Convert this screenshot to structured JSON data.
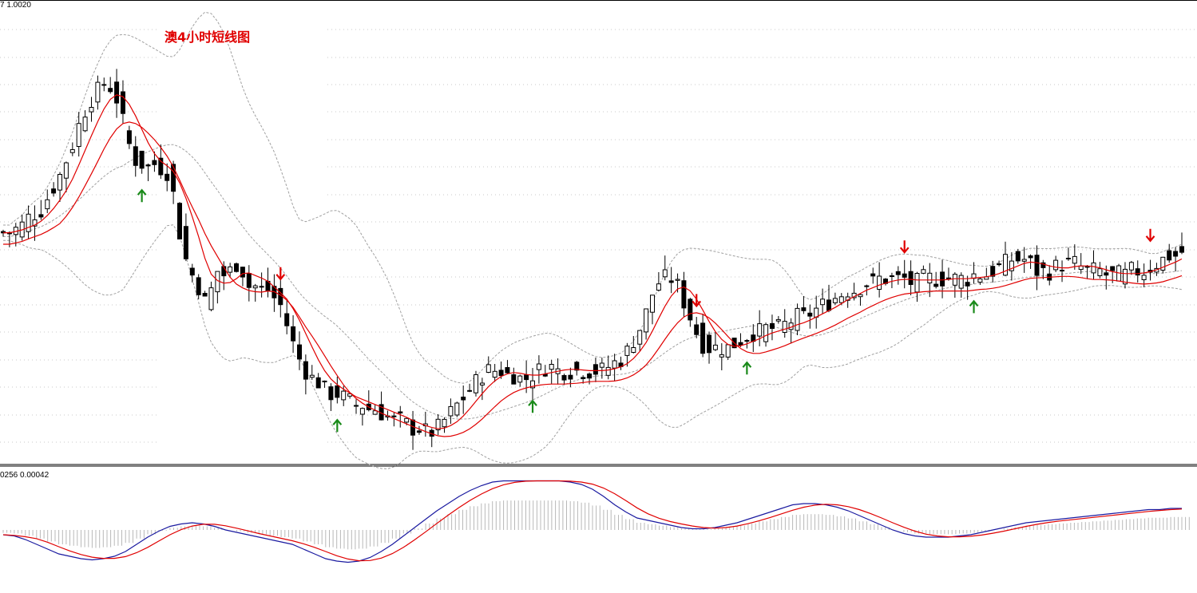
{
  "chart_title": "澳4小时短线图",
  "main_panel": {
    "info_text": "7 1.0020"
  },
  "sub_panel": {
    "info_text": "0256 0.00042"
  },
  "colors": {
    "background": "#ffffff",
    "candle_bull": "#ffffff",
    "candle_bear": "#000000",
    "ma": "#e00000",
    "band": "#a0a0a0",
    "arrow_down": "#e00000",
    "arrow_up": "#1a8a1a",
    "macd_line": "#1a1aa0",
    "signal_line": "#e00000",
    "histogram": "#b8b8b8"
  },
  "chart_data": {
    "type": "candlestick",
    "title": "澳4小时短线图",
    "indicators": [
      "moving-average",
      "bollinger-bands",
      "macd"
    ],
    "grid": true,
    "n_candles": 188,
    "close_series": [
      118,
      118,
      119,
      120,
      122,
      123,
      124,
      127,
      130,
      133,
      137,
      141,
      146,
      150,
      153,
      155,
      157,
      156,
      153,
      147,
      141,
      137,
      136,
      135,
      136,
      135,
      134,
      128,
      118,
      111,
      107,
      104,
      100,
      103,
      108,
      107,
      108,
      110,
      108,
      104,
      104,
      103,
      103,
      101,
      99,
      94,
      89,
      85,
      82,
      80,
      79,
      77,
      76,
      76,
      75,
      74,
      73,
      73,
      72,
      72,
      71,
      70,
      69,
      69,
      68,
      67,
      67,
      66,
      66,
      67,
      69,
      71,
      73,
      75,
      77,
      79,
      81,
      82,
      82,
      82,
      81,
      81,
      80,
      80,
      81,
      82,
      83,
      83,
      82,
      82,
      82,
      82,
      82,
      82,
      82,
      82,
      83,
      84,
      85,
      87,
      90,
      93,
      97,
      102,
      105,
      106,
      106,
      104,
      100,
      96,
      92,
      89,
      88,
      88,
      88,
      88,
      89,
      90,
      91,
      92,
      92,
      93,
      93,
      93,
      94,
      95,
      96,
      96,
      97,
      98,
      99,
      100,
      101,
      102,
      103,
      103,
      104,
      105,
      105,
      106,
      106,
      106,
      106,
      106,
      105,
      105,
      106,
      106,
      106,
      106,
      106,
      106,
      106,
      106,
      107,
      107,
      107,
      108,
      109,
      110,
      111,
      111,
      111,
      110,
      108,
      108,
      108,
      109,
      110,
      110,
      110,
      109,
      108,
      108,
      108,
      107,
      107,
      107,
      107,
      108,
      108,
      108,
      109,
      110,
      111,
      112,
      112,
      113
    ],
    "arrows": [
      {
        "index": 22,
        "direction": "up"
      },
      {
        "index": 44,
        "direction": "down"
      },
      {
        "index": 53,
        "direction": "up"
      },
      {
        "index": 84,
        "direction": "up"
      },
      {
        "index": 110,
        "direction": "down"
      },
      {
        "index": 118,
        "direction": "up"
      },
      {
        "index": 143,
        "direction": "down"
      },
      {
        "index": 154,
        "direction": "up"
      },
      {
        "index": 182,
        "direction": "down"
      }
    ],
    "macd_series": [
      -0.0004,
      -0.0005,
      -0.0008,
      -0.0012,
      -0.0016,
      -0.002,
      -0.0022,
      -0.0024,
      -0.0025,
      -0.0024,
      -0.0022,
      -0.0018,
      -0.0012,
      -0.0006,
      -0.0001,
      0.0003,
      0.0005,
      0.0006,
      0.0005,
      0.0003,
      0.0,
      -0.0002,
      -0.0004,
      -0.0006,
      -0.0008,
      -0.001,
      -0.0012,
      -0.0016,
      -0.002,
      -0.0024,
      -0.0026,
      -0.0027,
      -0.0026,
      -0.0023,
      -0.0018,
      -0.0012,
      -0.0005,
      0.0002,
      0.0009,
      0.0016,
      0.0022,
      0.0028,
      0.0033,
      0.0037,
      0.004,
      0.0041,
      0.0041,
      0.0041,
      0.0041,
      0.0041,
      0.0041,
      0.004,
      0.0038,
      0.0034,
      0.0028,
      0.0021,
      0.0015,
      0.001,
      0.0008,
      0.0006,
      0.0004,
      0.0002,
      0.0001,
      0.0001,
      0.0002,
      0.0004,
      0.0006,
      0.0009,
      0.0012,
      0.0015,
      0.0018,
      0.0021,
      0.0022,
      0.0022,
      0.0021,
      0.0019,
      0.0016,
      0.0012,
      0.0008,
      0.0004,
      0.0,
      -0.0003,
      -0.0005,
      -0.0006,
      -0.0006,
      -0.0006,
      -0.0005,
      -0.0004,
      -0.0002,
      0.0,
      0.0002,
      0.0004,
      0.0006,
      0.0007,
      0.0008,
      0.0009,
      0.001,
      0.0011,
      0.0012,
      0.0013,
      0.0014,
      0.0015,
      0.0016,
      0.0017,
      0.0017,
      0.0018,
      0.0018
    ]
  }
}
